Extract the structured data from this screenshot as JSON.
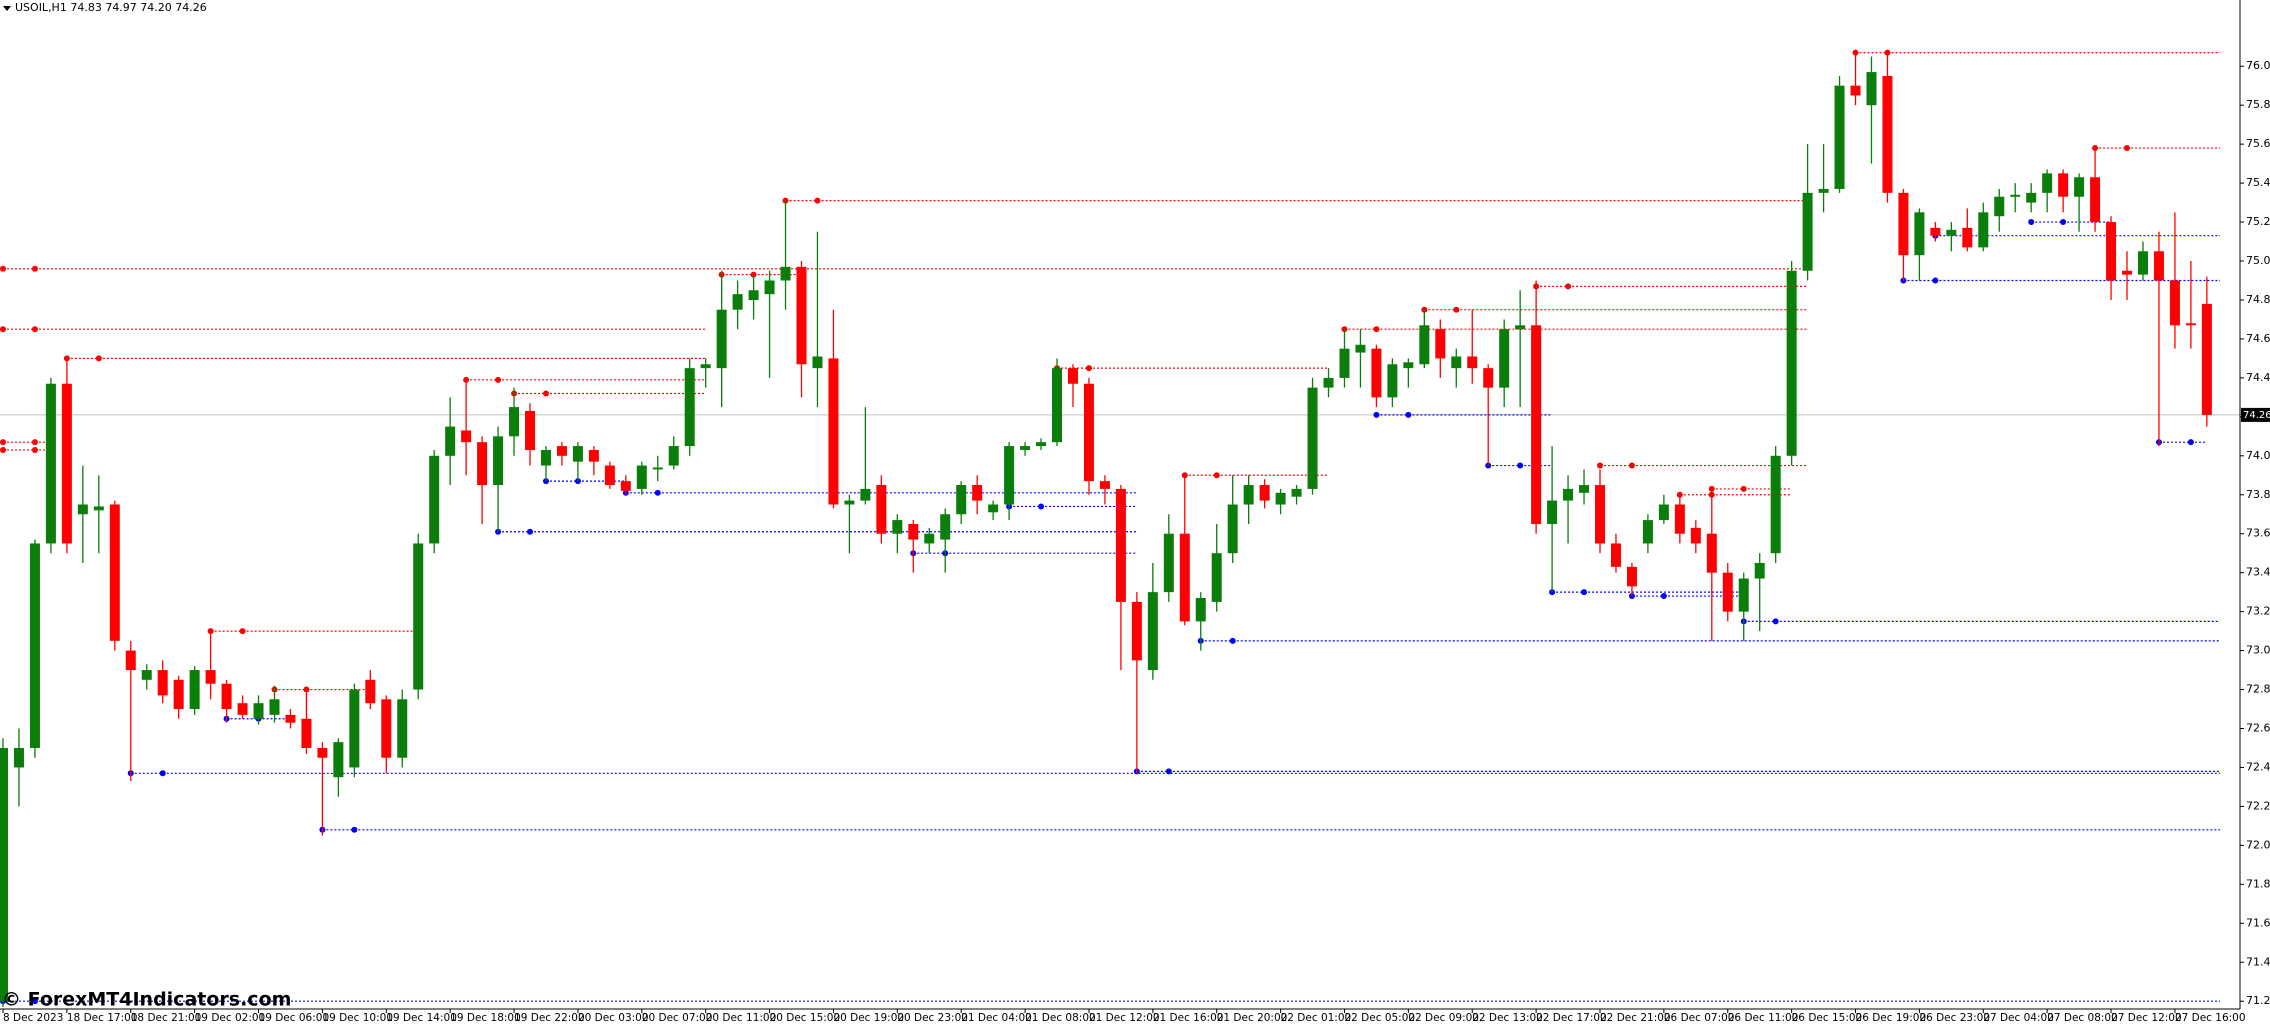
{
  "chart_data": {
    "type": "candlestick",
    "title": "USOIL,H1  74.83 74.97 74.20 74.26",
    "watermark": "© ForexMT4Indicators.com",
    "up_color": "#0a7d0a",
    "down_color": "#ff0000",
    "support_color": "#0000ff",
    "resistance_color": "#ff0000",
    "bid_color": "#c0c0c0",
    "current_price": 74.26,
    "ylim": [
      71.21,
      76.39
    ],
    "yticks": [
      71.25,
      71.45,
      71.65,
      71.85,
      72.05,
      72.25,
      72.45,
      72.65,
      72.85,
      73.05,
      73.25,
      73.45,
      73.65,
      73.85,
      74.05,
      74.25,
      74.45,
      74.65,
      74.85,
      75.05,
      75.25,
      75.45,
      75.65,
      75.85,
      76.05
    ],
    "categories": [
      "8 Dec 2023",
      null,
      null,
      null,
      "18 Dec 17:00",
      null,
      null,
      null,
      "18 Dec 21:00",
      null,
      null,
      null,
      "19 Dec 02:00",
      null,
      null,
      null,
      "19 Dec 06:00",
      null,
      null,
      null,
      "19 Dec 10:00",
      null,
      null,
      null,
      "19 Dec 14:00",
      null,
      null,
      null,
      "19 Dec 18:00",
      null,
      null,
      null,
      "19 Dec 22:00",
      null,
      null,
      null,
      "20 Dec 03:00",
      null,
      null,
      null,
      "20 Dec 07:00",
      null,
      null,
      null,
      "20 Dec 11:00",
      null,
      null,
      null,
      "20 Dec 15:00",
      null,
      null,
      null,
      "20 Dec 19:00",
      null,
      null,
      null,
      "20 Dec 23:00",
      null,
      null,
      null,
      "21 Dec 04:00",
      null,
      null,
      null,
      "21 Dec 08:00",
      null,
      null,
      null,
      "21 Dec 12:00",
      null,
      null,
      null,
      "21 Dec 16:00",
      null,
      null,
      null,
      "21 Dec 20:00",
      null,
      null,
      null,
      "22 Dec 01:00",
      null,
      null,
      null,
      "22 Dec 05:00",
      null,
      null,
      null,
      "22 Dec 09:00",
      null,
      null,
      null,
      "22 Dec 13:00",
      null,
      null,
      null,
      "22 Dec 17:00",
      null,
      null,
      null,
      "22 Dec 21:00",
      null,
      null,
      null,
      "26 Dec 07:00",
      null,
      null,
      null,
      "26 Dec 11:00",
      null,
      null,
      null,
      "26 Dec 15:00",
      null,
      null,
      null,
      "26 Dec 19:00",
      null,
      null,
      null,
      "26 Dec 23:00",
      null,
      null,
      null,
      "27 Dec 04:00",
      null,
      null,
      null,
      "27 Dec 08:00",
      null,
      null,
      null,
      "27 Dec 12:00",
      null,
      null,
      null,
      "27 Dec 16:00",
      null,
      null
    ],
    "ohlc": [
      [
        71.25,
        72.6,
        71.22,
        72.55
      ],
      [
        72.45,
        72.65,
        72.25,
        72.55
      ],
      [
        72.55,
        73.62,
        72.5,
        73.6
      ],
      [
        73.6,
        74.45,
        73.55,
        74.42
      ],
      [
        74.42,
        74.55,
        73.55,
        73.6
      ],
      [
        73.75,
        74.0,
        73.5,
        73.8
      ],
      [
        73.77,
        73.95,
        73.55,
        73.79
      ],
      [
        73.8,
        73.82,
        73.05,
        73.1
      ],
      [
        73.05,
        73.1,
        72.38,
        72.95
      ],
      [
        72.9,
        72.98,
        72.85,
        72.95
      ],
      [
        72.95,
        73.0,
        72.78,
        72.82
      ],
      [
        72.9,
        72.92,
        72.7,
        72.75
      ],
      [
        72.75,
        72.97,
        72.72,
        72.95
      ],
      [
        72.95,
        73.15,
        72.8,
        72.88
      ],
      [
        72.88,
        72.9,
        72.68,
        72.75
      ],
      [
        72.78,
        72.82,
        72.7,
        72.72
      ],
      [
        72.7,
        72.82,
        72.67,
        72.78
      ],
      [
        72.72,
        72.87,
        72.68,
        72.8
      ],
      [
        72.72,
        72.75,
        72.65,
        72.68
      ],
      [
        72.7,
        72.85,
        72.52,
        72.55
      ],
      [
        72.55,
        72.58,
        72.1,
        72.5
      ],
      [
        72.4,
        72.6,
        72.3,
        72.58
      ],
      [
        72.45,
        72.88,
        72.4,
        72.85
      ],
      [
        72.9,
        72.95,
        72.75,
        72.78
      ],
      [
        72.8,
        72.82,
        72.42,
        72.5
      ],
      [
        72.5,
        72.85,
        72.45,
        72.8
      ],
      [
        72.85,
        73.65,
        72.8,
        73.6
      ],
      [
        73.6,
        74.08,
        73.55,
        74.05
      ],
      [
        74.05,
        74.35,
        73.9,
        74.2
      ],
      [
        74.18,
        74.44,
        73.95,
        74.12
      ],
      [
        74.12,
        74.15,
        73.7,
        73.9
      ],
      [
        73.9,
        74.2,
        73.66,
        74.15
      ],
      [
        74.15,
        74.4,
        74.05,
        74.3
      ],
      [
        74.28,
        74.32,
        74.0,
        74.08
      ],
      [
        74.0,
        74.1,
        73.92,
        74.08
      ],
      [
        74.1,
        74.12,
        74.0,
        74.05
      ],
      [
        74.02,
        74.12,
        73.92,
        74.1
      ],
      [
        74.08,
        74.1,
        73.95,
        74.02
      ],
      [
        74.0,
        74.02,
        73.88,
        73.9
      ],
      [
        73.92,
        73.95,
        73.85,
        73.87
      ],
      [
        73.88,
        74.02,
        73.85,
        74.0
      ],
      [
        73.98,
        74.05,
        73.92,
        73.99
      ],
      [
        74.0,
        74.15,
        73.98,
        74.1
      ],
      [
        74.1,
        74.55,
        74.05,
        74.5
      ],
      [
        74.5,
        74.55,
        74.4,
        74.52
      ],
      [
        74.5,
        75.0,
        74.3,
        74.8
      ],
      [
        74.8,
        74.95,
        74.7,
        74.88
      ],
      [
        74.85,
        74.98,
        74.75,
        74.9
      ],
      [
        74.88,
        75.0,
        74.45,
        74.95
      ],
      [
        74.95,
        75.36,
        74.8,
        75.02
      ],
      [
        75.02,
        75.05,
        74.35,
        74.52
      ],
      [
        74.5,
        75.2,
        74.3,
        74.56
      ],
      [
        74.55,
        74.8,
        73.78,
        73.8
      ],
      [
        73.8,
        73.85,
        73.55,
        73.82
      ],
      [
        73.82,
        74.3,
        73.8,
        73.88
      ],
      [
        73.9,
        73.95,
        73.6,
        73.65
      ],
      [
        73.65,
        73.75,
        73.55,
        73.72
      ],
      [
        73.7,
        73.72,
        73.45,
        73.62
      ],
      [
        73.6,
        73.68,
        73.55,
        73.65
      ],
      [
        73.62,
        73.78,
        73.45,
        73.75
      ],
      [
        73.75,
        73.92,
        73.7,
        73.9
      ],
      [
        73.9,
        73.95,
        73.75,
        73.82
      ],
      [
        73.76,
        73.82,
        73.72,
        73.8
      ],
      [
        73.8,
        74.12,
        73.72,
        74.1
      ],
      [
        74.08,
        74.12,
        74.05,
        74.1
      ],
      [
        74.1,
        74.14,
        74.08,
        74.12
      ],
      [
        74.12,
        74.55,
        74.1,
        74.5
      ],
      [
        74.5,
        74.52,
        74.3,
        74.42
      ],
      [
        74.42,
        74.45,
        73.85,
        73.92
      ],
      [
        73.92,
        73.95,
        73.8,
        73.88
      ],
      [
        73.88,
        73.9,
        72.95,
        73.3
      ],
      [
        73.3,
        73.35,
        72.42,
        73.0
      ],
      [
        72.95,
        73.5,
        72.9,
        73.35
      ],
      [
        73.35,
        73.75,
        73.3,
        73.65
      ],
      [
        73.65,
        73.95,
        73.18,
        73.2
      ],
      [
        73.2,
        73.35,
        73.05,
        73.32
      ],
      [
        73.3,
        73.7,
        73.25,
        73.55
      ],
      [
        73.55,
        73.95,
        73.5,
        73.8
      ],
      [
        73.8,
        73.95,
        73.7,
        73.9
      ],
      [
        73.9,
        73.93,
        73.78,
        73.82
      ],
      [
        73.8,
        73.88,
        73.75,
        73.86
      ],
      [
        73.84,
        73.9,
        73.8,
        73.88
      ],
      [
        73.88,
        74.45,
        73.85,
        74.4
      ],
      [
        74.4,
        74.5,
        74.35,
        74.45
      ],
      [
        74.45,
        74.7,
        74.4,
        74.6
      ],
      [
        74.58,
        74.7,
        74.4,
        74.62
      ],
      [
        74.6,
        74.62,
        74.3,
        74.35
      ],
      [
        74.35,
        74.55,
        74.3,
        74.52
      ],
      [
        74.5,
        74.55,
        74.4,
        74.53
      ],
      [
        74.52,
        74.8,
        74.5,
        74.72
      ],
      [
        74.7,
        74.75,
        74.45,
        74.55
      ],
      [
        74.5,
        74.6,
        74.4,
        74.56
      ],
      [
        74.56,
        74.8,
        74.42,
        74.5
      ],
      [
        74.5,
        74.52,
        74.0,
        74.4
      ],
      [
        74.4,
        74.75,
        74.3,
        74.7
      ],
      [
        74.7,
        74.9,
        74.3,
        74.72
      ],
      [
        74.72,
        74.95,
        73.65,
        73.7
      ],
      [
        73.7,
        74.1,
        73.35,
        73.82
      ],
      [
        73.82,
        73.95,
        73.6,
        73.88
      ],
      [
        73.86,
        73.98,
        73.8,
        73.9
      ],
      [
        73.9,
        73.98,
        73.55,
        73.6
      ],
      [
        73.6,
        73.65,
        73.45,
        73.48
      ],
      [
        73.48,
        73.5,
        73.33,
        73.38
      ],
      [
        73.6,
        73.75,
        73.55,
        73.72
      ],
      [
        73.72,
        73.85,
        73.7,
        73.8
      ],
      [
        73.8,
        73.85,
        73.6,
        73.65
      ],
      [
        73.68,
        73.72,
        73.55,
        73.6
      ],
      [
        73.65,
        73.88,
        73.1,
        73.45
      ],
      [
        73.45,
        73.5,
        73.2,
        73.25
      ],
      [
        73.25,
        73.45,
        73.1,
        73.42
      ],
      [
        73.42,
        73.55,
        73.15,
        73.5
      ],
      [
        73.55,
        74.1,
        73.5,
        74.05
      ],
      [
        74.05,
        75.05,
        74.0,
        75.0
      ],
      [
        75.0,
        75.65,
        74.95,
        75.4
      ],
      [
        75.4,
        75.65,
        75.3,
        75.42
      ],
      [
        75.42,
        76.0,
        75.4,
        75.95
      ],
      [
        75.95,
        76.12,
        75.85,
        75.9
      ],
      [
        75.85,
        76.1,
        75.55,
        76.02
      ],
      [
        76.0,
        76.12,
        75.35,
        75.4
      ],
      [
        75.4,
        75.42,
        74.95,
        75.08
      ],
      [
        75.08,
        75.32,
        74.95,
        75.3
      ],
      [
        75.22,
        75.25,
        75.15,
        75.18
      ],
      [
        75.18,
        75.25,
        75.1,
        75.21
      ],
      [
        75.22,
        75.32,
        75.1,
        75.12
      ],
      [
        75.12,
        75.35,
        75.1,
        75.3
      ],
      [
        75.28,
        75.42,
        75.2,
        75.38
      ],
      [
        75.38,
        75.45,
        75.3,
        75.39
      ],
      [
        75.35,
        75.45,
        75.3,
        75.4
      ],
      [
        75.4,
        75.52,
        75.3,
        75.5
      ],
      [
        75.5,
        75.52,
        75.3,
        75.38
      ],
      [
        75.38,
        75.5,
        75.2,
        75.48
      ],
      [
        75.48,
        75.63,
        75.2,
        75.25
      ],
      [
        75.25,
        75.28,
        74.85,
        74.95
      ],
      [
        75.0,
        75.1,
        74.85,
        74.98
      ],
      [
        74.98,
        75.15,
        74.95,
        75.1
      ],
      [
        75.1,
        75.2,
        74.1,
        74.95
      ],
      [
        74.95,
        75.3,
        74.6,
        74.72
      ],
      [
        74.73,
        75.05,
        74.6,
        74.72
      ],
      [
        74.83,
        74.97,
        74.2,
        74.26
      ]
    ],
    "resistance_levels": [
      [
        75.01,
        0,
        112
      ],
      [
        74.7,
        0,
        43
      ],
      [
        74.55,
        4,
        43
      ],
      [
        74.12,
        0,
        2
      ],
      [
        74.08,
        0,
        2
      ],
      [
        73.15,
        13,
        25
      ],
      [
        72.85,
        17,
        22
      ],
      [
        74.44,
        29,
        43
      ],
      [
        74.37,
        32,
        43
      ],
      [
        74.98,
        45,
        49
      ],
      [
        75.36,
        49,
        112
      ],
      [
        74.5,
        66,
        82
      ],
      [
        73.95,
        74,
        82
      ],
      [
        74.7,
        84,
        112
      ],
      [
        74.8,
        89,
        112
      ],
      [
        74.92,
        96,
        112
      ],
      [
        74.0,
        100,
        112
      ],
      [
        73.85,
        105,
        111
      ],
      [
        73.88,
        107,
        111
      ],
      [
        76.12,
        116,
        138
      ],
      [
        75.63,
        131,
        138
      ]
    ],
    "support_levels": [
      [
        72.42,
        8,
        138
      ],
      [
        72.13,
        20,
        138
      ],
      [
        72.7,
        14,
        17
      ],
      [
        73.66,
        31,
        70
      ],
      [
        73.92,
        34,
        38
      ],
      [
        73.86,
        39,
        70
      ],
      [
        73.55,
        57,
        70
      ],
      [
        73.79,
        63,
        70
      ],
      [
        72.43,
        71,
        138
      ],
      [
        73.1,
        75,
        138
      ],
      [
        74.26,
        86,
        96
      ],
      [
        74.0,
        93,
        96
      ],
      [
        73.35,
        97,
        108
      ],
      [
        73.33,
        102,
        108
      ],
      [
        73.2,
        109,
        138
      ],
      [
        75.18,
        121,
        138
      ],
      [
        75.25,
        127,
        131
      ],
      [
        74.95,
        119,
        138
      ],
      [
        74.12,
        135,
        137
      ],
      [
        71.25,
        0,
        138
      ]
    ]
  }
}
